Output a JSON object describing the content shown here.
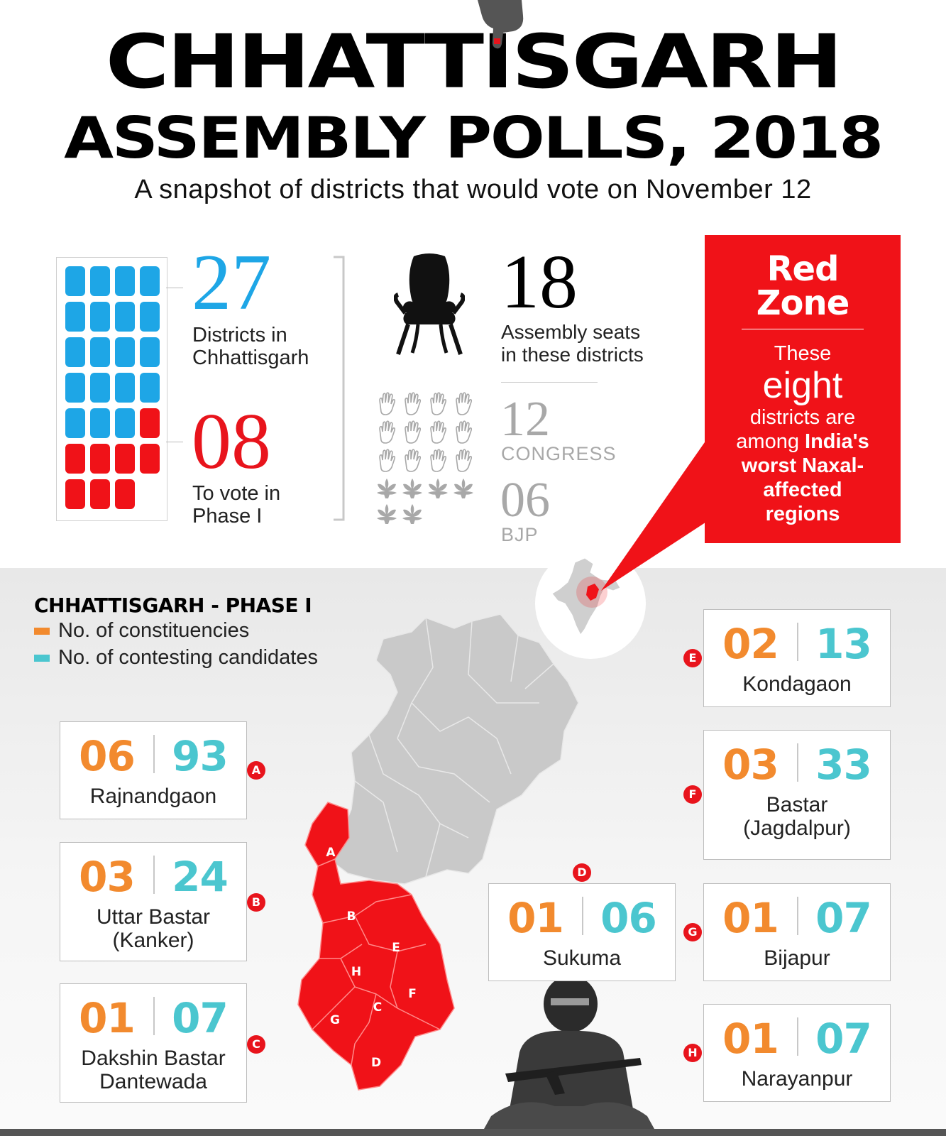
{
  "header": {
    "title_line1": "CHHATTISGARH",
    "title_line2": "ASSEMBLY POLLS, 2018",
    "subtitle": "A snapshot of districts that would vote on November 12"
  },
  "stats": {
    "districts_total": "27",
    "districts_total_label_1": "Districts in",
    "districts_total_label_2": "Chhattisgarh",
    "districts_phase1": "08",
    "districts_phase1_label_1": "To vote in",
    "districts_phase1_label_2": "Phase I",
    "seats": "18",
    "seats_label_1": "Assembly seats",
    "seats_label_2": "in these districts",
    "congress_seats": "12",
    "congress_label": "CONGRESS",
    "bjp_seats": "06",
    "bjp_label": "BJP"
  },
  "colors": {
    "blue_block": "#1ea6e6",
    "red_block": "#f01218",
    "constituencies": "#f28a2e",
    "candidates": "#4bc6cf",
    "map_grey": "#c9c9c9",
    "map_red": "#f01218"
  },
  "red_zone": {
    "title_1": "Red",
    "title_2": "Zone",
    "line_1": "These",
    "line_big": "eight",
    "line_2": "districts are",
    "line_3a": "among ",
    "line_3b": "India's",
    "line_4": "worst Naxal-",
    "line_5": "affected",
    "line_6": "regions"
  },
  "legend": {
    "title": "CHHATTISGARH - PHASE I",
    "item_1": "No. of constituencies",
    "item_2": "No. of contesting candidates"
  },
  "districts": [
    {
      "letter": "A",
      "name": "Rajnandgaon",
      "name2": "",
      "constituencies": "06",
      "candidates": "93"
    },
    {
      "letter": "B",
      "name": "Uttar Bastar",
      "name2": "(Kanker)",
      "constituencies": "03",
      "candidates": "24"
    },
    {
      "letter": "C",
      "name": "Dakshin Bastar",
      "name2": "Dantewada",
      "constituencies": "01",
      "candidates": "07"
    },
    {
      "letter": "D",
      "name": "Sukuma",
      "name2": "",
      "constituencies": "01",
      "candidates": "06"
    },
    {
      "letter": "E",
      "name": "Kondagaon",
      "name2": "",
      "constituencies": "02",
      "candidates": "13"
    },
    {
      "letter": "F",
      "name": "Bastar",
      "name2": "(Jagdalpur)",
      "constituencies": "03",
      "candidates": "33"
    },
    {
      "letter": "G",
      "name": "Bijapur",
      "name2": "",
      "constituencies": "01",
      "candidates": "07"
    },
    {
      "letter": "H",
      "name": "Narayanpur",
      "name2": "",
      "constituencies": "01",
      "candidates": "07"
    }
  ]
}
